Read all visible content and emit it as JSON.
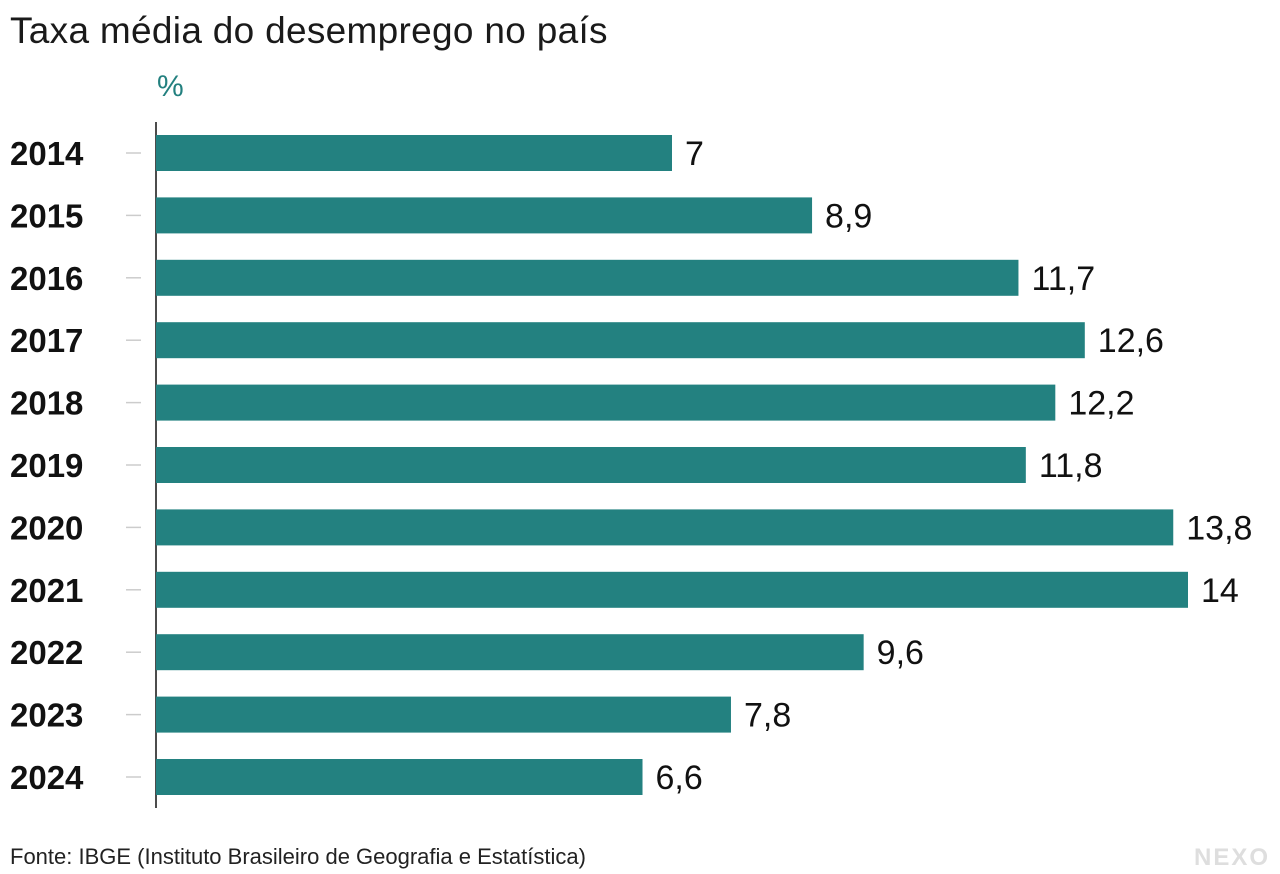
{
  "title": "Taxa média do desemprego no país",
  "unit": "%",
  "source": "Fonte: IBGE (Instituto Brasileiro de Geografia e Estatística)",
  "logo": "NEXO",
  "colors": {
    "bar": "#238180",
    "unit": "#23807f",
    "axis": "#111111",
    "tick": "#cccccc",
    "text": "#111111"
  },
  "chart_data": {
    "type": "bar",
    "orientation": "horizontal",
    "categories": [
      "2014",
      "2015",
      "2016",
      "2017",
      "2018",
      "2019",
      "2020",
      "2021",
      "2022",
      "2023",
      "2024"
    ],
    "values": [
      7,
      8.9,
      11.7,
      12.6,
      12.2,
      11.8,
      13.8,
      14,
      9.6,
      7.8,
      6.6
    ],
    "value_labels": [
      "7",
      "8,9",
      "11,7",
      "12,6",
      "12,2",
      "11,8",
      "13,8",
      "14",
      "9,6",
      "7,8",
      "6,6"
    ],
    "title": "Taxa média do desemprego no país",
    "xlabel": "",
    "ylabel": "",
    "unit": "%",
    "xlim": [
      0,
      14
    ],
    "grid": false
  }
}
